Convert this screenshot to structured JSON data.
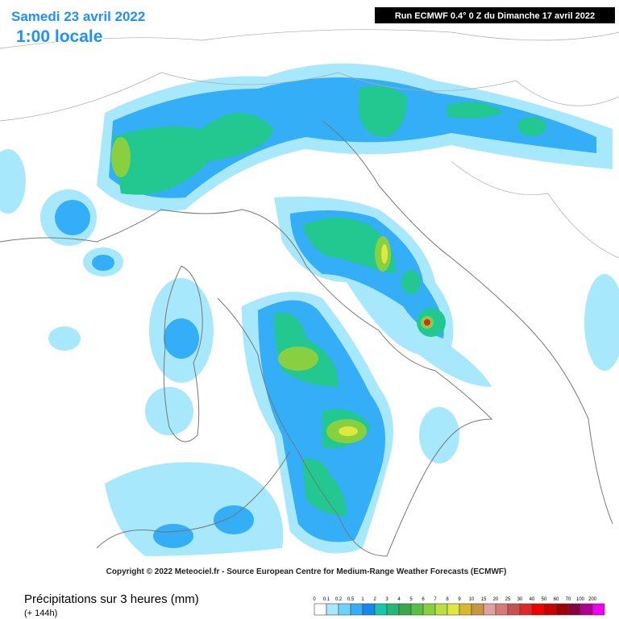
{
  "header": {
    "date": "Samedi 23 avril 2022",
    "time": "1:00 locale",
    "run": "Run ECMWF 0.4° 0 Z du Dimanche 17 avril 2022"
  },
  "footer": {
    "copyright": "Copyright © 2022 Meteociel.fr - Source European Centre for Medium-Range Weather Forecasts (ECMWF)",
    "title": "Précipitations sur 3 heures (mm)",
    "lead": "(+ 144h)"
  },
  "scale": {
    "labels": [
      "0",
      "0.1",
      "0.2",
      "0.5",
      "1",
      "2",
      "3",
      "4",
      "5",
      "6",
      "7",
      "8",
      "9",
      "10",
      "15",
      "20",
      "25",
      "30",
      "40",
      "50",
      "60",
      "70",
      "100",
      "200"
    ],
    "colors": [
      "#ffffff",
      "#a8e8fc",
      "#6cd4fa",
      "#34aef6",
      "#1488ee",
      "#14c8a8",
      "#22b878",
      "#3aa848",
      "#58c040",
      "#88d040",
      "#b8e040",
      "#e0e840",
      "#d8b830",
      "#c89840",
      "#e0a0a0",
      "#d87878",
      "#c85050",
      "#e02828",
      "#f00000",
      "#c80000",
      "#a00000",
      "#880040",
      "#b00090",
      "#f000f0"
    ]
  }
}
